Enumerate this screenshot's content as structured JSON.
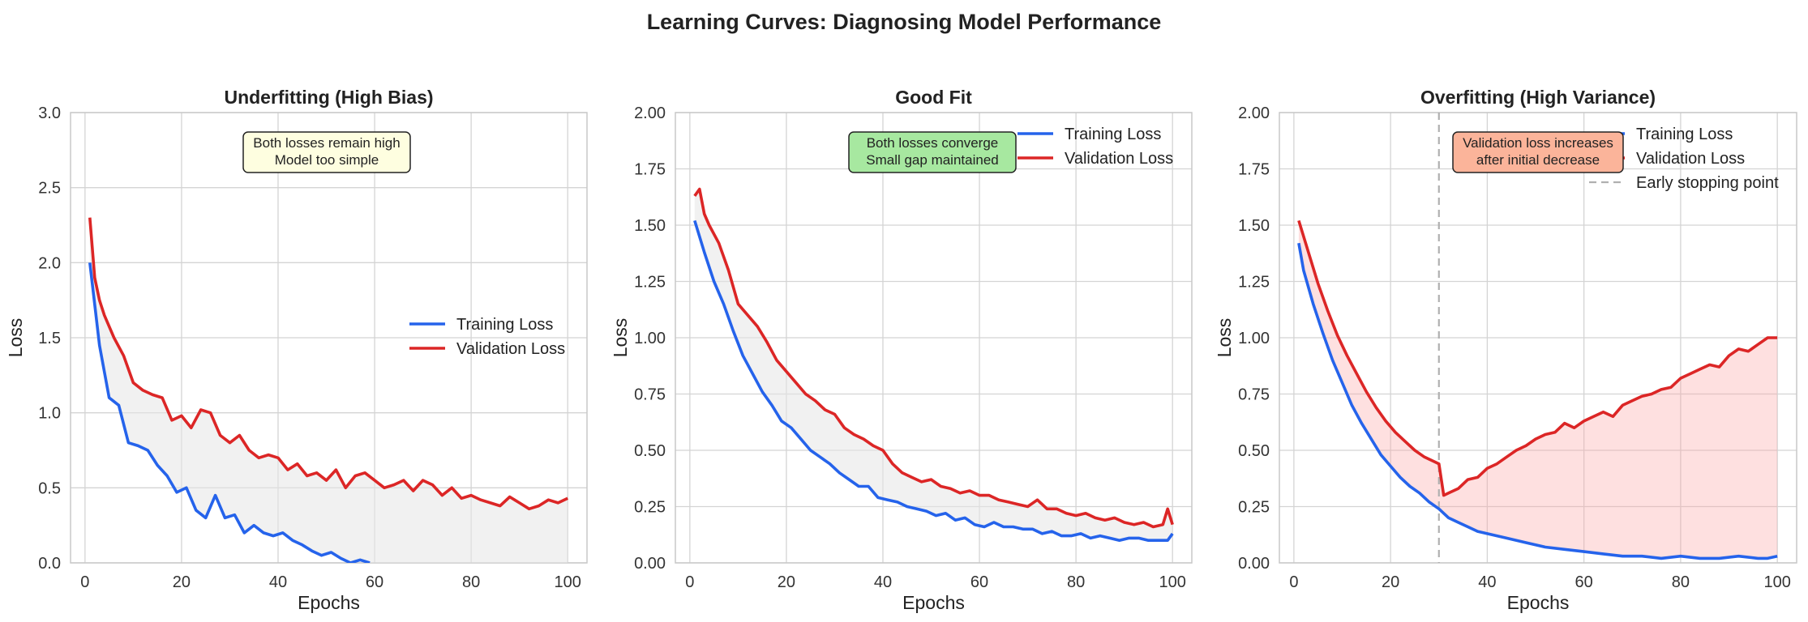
{
  "figure": {
    "title": "Learning Curves: Diagnosing Model Performance"
  },
  "colors": {
    "train": "#2563eb",
    "val": "#dc2626",
    "grid": "#d4d4d4",
    "frame": "#c8c8c8",
    "early_stop": "#b0b0b0"
  },
  "chart_data": [
    {
      "type": "line",
      "title": "Underfitting (High Bias)",
      "xlabel": "Epochs",
      "ylabel": "Loss",
      "xlim": [
        -3,
        104
      ],
      "ylim": [
        0,
        3.0
      ],
      "xticks": [
        0,
        20,
        40,
        60,
        80,
        100
      ],
      "yticks": [
        0.0,
        0.5,
        1.0,
        1.5,
        2.0,
        2.5,
        3.0
      ],
      "ytick_labels": [
        "0.0",
        "0.5",
        "1.0",
        "1.5",
        "2.0",
        "2.5",
        "3.0"
      ],
      "grid": true,
      "legend": {
        "location": "center-right",
        "entries": [
          "Training Loss",
          "Validation Loss"
        ]
      },
      "annotation": {
        "lines": [
          "Both losses remain high",
          "Model too simple"
        ],
        "bg": "#fefee0"
      },
      "fill_between": {
        "color": "#e5e5e5",
        "opacity": 0.55
      },
      "series": [
        {
          "name": "Training Loss",
          "x": [
            1,
            3,
            5,
            7,
            9,
            11,
            13,
            15,
            17,
            19,
            21,
            23,
            25,
            27,
            29,
            31,
            33,
            35,
            37,
            39,
            41,
            43,
            45,
            47,
            49,
            51,
            53,
            55,
            57,
            59
          ],
          "values": [
            2.0,
            1.45,
            1.1,
            1.05,
            0.8,
            0.78,
            0.75,
            0.65,
            0.58,
            0.47,
            0.5,
            0.35,
            0.3,
            0.45,
            0.3,
            0.32,
            0.2,
            0.25,
            0.2,
            0.18,
            0.2,
            0.15,
            0.12,
            0.08,
            0.05,
            0.07,
            0.03,
            0.0,
            0.02,
            0.0
          ]
        },
        {
          "name": "Validation Loss",
          "x": [
            1,
            2,
            3,
            4,
            6,
            8,
            10,
            12,
            14,
            16,
            18,
            20,
            22,
            24,
            26,
            28,
            30,
            32,
            34,
            36,
            38,
            40,
            42,
            44,
            46,
            48,
            50,
            52,
            54,
            56,
            58,
            60,
            62,
            64,
            66,
            68,
            70,
            72,
            74,
            76,
            78,
            80,
            82,
            84,
            86,
            88,
            90,
            92,
            94,
            96,
            98,
            100
          ],
          "values": [
            2.3,
            1.9,
            1.75,
            1.65,
            1.5,
            1.38,
            1.2,
            1.15,
            1.12,
            1.1,
            0.95,
            0.98,
            0.9,
            1.02,
            1.0,
            0.85,
            0.8,
            0.85,
            0.75,
            0.7,
            0.72,
            0.7,
            0.62,
            0.66,
            0.58,
            0.6,
            0.55,
            0.62,
            0.5,
            0.58,
            0.6,
            0.55,
            0.5,
            0.52,
            0.55,
            0.48,
            0.55,
            0.52,
            0.45,
            0.5,
            0.43,
            0.45,
            0.42,
            0.4,
            0.38,
            0.44,
            0.4,
            0.36,
            0.38,
            0.42,
            0.4,
            0.43
          ]
        }
      ]
    },
    {
      "type": "line",
      "title": "Good Fit",
      "xlabel": "Epochs",
      "ylabel": "Loss",
      "xlim": [
        -3,
        104
      ],
      "ylim": [
        0,
        2.0
      ],
      "xticks": [
        0,
        20,
        40,
        60,
        80,
        100
      ],
      "yticks": [
        0.0,
        0.25,
        0.5,
        0.75,
        1.0,
        1.25,
        1.5,
        1.75,
        2.0
      ],
      "ytick_labels": [
        "0.00",
        "0.25",
        "0.50",
        "0.75",
        "1.00",
        "1.25",
        "1.50",
        "1.75",
        "2.00"
      ],
      "grid": true,
      "legend": {
        "location": "top-right",
        "entries": [
          "Training Loss",
          "Validation Loss"
        ]
      },
      "annotation": {
        "lines": [
          "Both losses converge",
          "Small gap maintained"
        ],
        "bg": "#a7e8a0"
      },
      "fill_between": {
        "color": "#e5e5e5",
        "opacity": 0.55
      },
      "series": [
        {
          "name": "Training Loss",
          "x": [
            1,
            3,
            5,
            7,
            9,
            11,
            13,
            15,
            17,
            19,
            21,
            23,
            25,
            27,
            29,
            31,
            33,
            35,
            37,
            39,
            41,
            43,
            45,
            47,
            49,
            51,
            53,
            55,
            57,
            59,
            61,
            63,
            65,
            67,
            69,
            71,
            73,
            75,
            77,
            79,
            81,
            83,
            85,
            87,
            89,
            91,
            93,
            95,
            97,
            99,
            100
          ],
          "values": [
            1.52,
            1.38,
            1.25,
            1.15,
            1.03,
            0.92,
            0.84,
            0.76,
            0.7,
            0.63,
            0.6,
            0.55,
            0.5,
            0.47,
            0.44,
            0.4,
            0.37,
            0.34,
            0.34,
            0.29,
            0.28,
            0.27,
            0.25,
            0.24,
            0.23,
            0.21,
            0.22,
            0.19,
            0.2,
            0.17,
            0.16,
            0.18,
            0.16,
            0.16,
            0.15,
            0.15,
            0.13,
            0.14,
            0.12,
            0.12,
            0.13,
            0.11,
            0.12,
            0.11,
            0.1,
            0.11,
            0.11,
            0.1,
            0.1,
            0.1,
            0.13
          ]
        },
        {
          "name": "Validation Loss",
          "x": [
            1,
            2,
            3,
            4,
            6,
            8,
            10,
            12,
            14,
            16,
            18,
            20,
            22,
            24,
            26,
            28,
            30,
            32,
            34,
            36,
            38,
            40,
            42,
            44,
            46,
            48,
            50,
            52,
            54,
            56,
            58,
            60,
            62,
            64,
            66,
            68,
            70,
            72,
            74,
            76,
            78,
            80,
            82,
            84,
            86,
            88,
            90,
            92,
            94,
            96,
            98,
            99,
            100
          ],
          "values": [
            1.63,
            1.66,
            1.55,
            1.5,
            1.42,
            1.3,
            1.15,
            1.1,
            1.05,
            0.98,
            0.9,
            0.85,
            0.8,
            0.75,
            0.72,
            0.68,
            0.66,
            0.6,
            0.57,
            0.55,
            0.52,
            0.5,
            0.44,
            0.4,
            0.38,
            0.36,
            0.37,
            0.34,
            0.33,
            0.31,
            0.32,
            0.3,
            0.3,
            0.28,
            0.27,
            0.26,
            0.25,
            0.28,
            0.24,
            0.24,
            0.22,
            0.21,
            0.22,
            0.2,
            0.19,
            0.2,
            0.18,
            0.17,
            0.18,
            0.16,
            0.17,
            0.24,
            0.17
          ]
        }
      ]
    },
    {
      "type": "line",
      "title": "Overfitting (High Variance)",
      "xlabel": "Epochs",
      "ylabel": "Loss",
      "xlim": [
        -3,
        104
      ],
      "ylim": [
        0,
        2.0
      ],
      "xticks": [
        0,
        20,
        40,
        60,
        80,
        100
      ],
      "yticks": [
        0.0,
        0.25,
        0.5,
        0.75,
        1.0,
        1.25,
        1.5,
        1.75,
        2.0
      ],
      "ytick_labels": [
        "0.00",
        "0.25",
        "0.50",
        "0.75",
        "1.00",
        "1.25",
        "1.50",
        "1.75",
        "2.00"
      ],
      "grid": true,
      "legend": {
        "location": "top-right",
        "entries": [
          "Training Loss",
          "Validation Loss",
          "Early stopping point"
        ]
      },
      "annotation": {
        "lines": [
          "Validation loss increases",
          "after initial decrease"
        ],
        "bg": "#fbb49a"
      },
      "fill_between": {
        "color": "#fca5a5",
        "opacity": 0.35
      },
      "early_stopping_x": 30,
      "series": [
        {
          "name": "Training Loss",
          "x": [
            1,
            2,
            4,
            6,
            8,
            10,
            12,
            14,
            16,
            18,
            20,
            22,
            24,
            26,
            28,
            30,
            32,
            34,
            36,
            38,
            40,
            44,
            48,
            52,
            56,
            60,
            64,
            68,
            72,
            76,
            80,
            84,
            88,
            92,
            96,
            98,
            100
          ],
          "values": [
            1.42,
            1.3,
            1.15,
            1.02,
            0.9,
            0.8,
            0.7,
            0.62,
            0.55,
            0.48,
            0.43,
            0.38,
            0.34,
            0.31,
            0.27,
            0.24,
            0.2,
            0.18,
            0.16,
            0.14,
            0.13,
            0.11,
            0.09,
            0.07,
            0.06,
            0.05,
            0.04,
            0.03,
            0.03,
            0.02,
            0.03,
            0.02,
            0.02,
            0.03,
            0.02,
            0.02,
            0.03
          ]
        },
        {
          "name": "Validation Loss",
          "x": [
            1,
            3,
            5,
            7,
            9,
            11,
            13,
            15,
            17,
            19,
            21,
            23,
            25,
            27,
            29,
            30,
            31,
            32,
            34,
            36,
            38,
            40,
            42,
            44,
            46,
            48,
            50,
            52,
            54,
            56,
            58,
            60,
            62,
            64,
            66,
            68,
            70,
            72,
            74,
            76,
            78,
            80,
            82,
            84,
            86,
            88,
            90,
            92,
            94,
            96,
            98,
            100
          ],
          "values": [
            1.52,
            1.38,
            1.24,
            1.12,
            1.01,
            0.92,
            0.84,
            0.76,
            0.69,
            0.63,
            0.58,
            0.54,
            0.5,
            0.47,
            0.45,
            0.44,
            0.3,
            0.31,
            0.33,
            0.37,
            0.38,
            0.42,
            0.44,
            0.47,
            0.5,
            0.52,
            0.55,
            0.57,
            0.58,
            0.62,
            0.6,
            0.63,
            0.65,
            0.67,
            0.65,
            0.7,
            0.72,
            0.74,
            0.75,
            0.77,
            0.78,
            0.82,
            0.84,
            0.86,
            0.88,
            0.87,
            0.92,
            0.95,
            0.94,
            0.97,
            1.0,
            1.0
          ]
        }
      ]
    }
  ]
}
